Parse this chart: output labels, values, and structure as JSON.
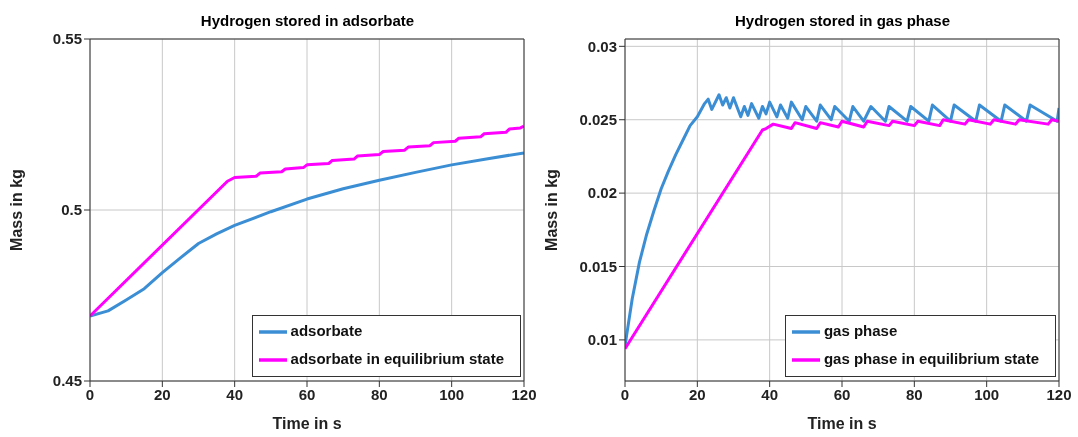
{
  "chart_data": [
    {
      "type": "line",
      "title": "Hydrogen stored in adsorbate",
      "xlabel": "Time in s",
      "ylabel": "Mass in kg",
      "xlim": [
        0,
        120
      ],
      "xticks": [
        0,
        20,
        40,
        60,
        80,
        100,
        120
      ],
      "ylim": [
        0.45,
        0.55
      ],
      "yticks": [
        0.45,
        0.5,
        0.55
      ],
      "grid": true,
      "legend": "bottom right",
      "marker": "none",
      "line_style": "solid",
      "series": [
        {
          "name": "adsorbate",
          "color": "#3b8ed4",
          "x": [
            0,
            5,
            10,
            15,
            20,
            25,
            30,
            35,
            40,
            50,
            60,
            70,
            80,
            90,
            100,
            110,
            120
          ],
          "values": [
            0.469,
            0.4705,
            0.4737,
            0.477,
            0.4817,
            0.486,
            0.4902,
            0.493,
            0.4955,
            0.4995,
            0.5032,
            0.5062,
            0.5087,
            0.511,
            0.5132,
            0.515,
            0.5167
          ]
        },
        {
          "name": "adsorbate in equilibrium state",
          "color": "#ff00ff",
          "x": [
            0,
            38,
            40,
            46,
            47,
            53,
            54,
            59,
            60,
            66,
            67,
            73,
            74,
            80,
            81,
            87,
            88,
            94,
            95,
            101,
            102,
            108,
            109,
            115,
            116,
            119,
            120
          ],
          "values": [
            0.469,
            0.5084,
            0.5095,
            0.5099,
            0.5108,
            0.5112,
            0.512,
            0.5124,
            0.5132,
            0.5136,
            0.5145,
            0.5149,
            0.5158,
            0.5162,
            0.5171,
            0.5175,
            0.5184,
            0.5188,
            0.5197,
            0.5201,
            0.521,
            0.5214,
            0.5223,
            0.5227,
            0.5237,
            0.524,
            0.5245
          ]
        }
      ]
    },
    {
      "type": "line",
      "title": "Hydrogen stored in gas phase",
      "xlabel": "Time in s",
      "ylabel": "Mass in kg",
      "xlim": [
        0,
        120
      ],
      "xticks": [
        0,
        20,
        40,
        60,
        80,
        100,
        120
      ],
      "ylim": [
        0.0072,
        0.0305
      ],
      "yticks": [
        0.01,
        0.015,
        0.02,
        0.025,
        0.03
      ],
      "grid": true,
      "legend": "bottom right",
      "marker": "none",
      "line_style": "solid",
      "series": [
        {
          "name": "gas phase",
          "color": "#3b8ed4",
          "x": [
            0,
            2,
            4,
            6,
            8,
            10,
            12,
            14,
            16,
            18,
            20,
            22,
            23,
            24,
            26,
            27,
            28,
            29,
            30,
            32,
            33,
            34,
            35,
            37,
            38,
            39,
            40,
            42,
            43,
            45,
            46,
            49,
            50,
            53,
            54,
            57,
            58,
            62,
            63,
            66,
            68,
            72,
            73,
            78,
            79,
            84,
            85,
            90,
            91,
            97,
            98,
            104,
            105,
            111,
            112,
            119.5,
            120
          ],
          "values": [
            0.0096,
            0.0128,
            0.0153,
            0.0172,
            0.0188,
            0.0203,
            0.0215,
            0.0226,
            0.0236,
            0.0246,
            0.0252,
            0.0261,
            0.0264,
            0.0257,
            0.0267,
            0.026,
            0.0265,
            0.0258,
            0.0265,
            0.0252,
            0.0259,
            0.0253,
            0.0261,
            0.0251,
            0.0259,
            0.0254,
            0.0262,
            0.0252,
            0.026,
            0.0251,
            0.0262,
            0.025,
            0.0259,
            0.0249,
            0.026,
            0.025,
            0.0259,
            0.0249,
            0.0259,
            0.0249,
            0.0259,
            0.0249,
            0.0259,
            0.0249,
            0.0259,
            0.0249,
            0.026,
            0.0249,
            0.026,
            0.0249,
            0.026,
            0.0249,
            0.026,
            0.0249,
            0.026,
            0.0249,
            0.0258
          ]
        },
        {
          "name": "gas phase in equilibrium state",
          "color": "#ff00ff",
          "x": [
            0,
            38,
            39,
            41,
            46,
            47,
            53,
            54,
            59,
            60,
            66,
            67,
            73,
            74,
            80,
            81,
            87,
            88,
            94,
            95,
            101,
            102,
            108,
            109,
            117,
            118,
            120
          ],
          "values": [
            0.0094,
            0.0243,
            0.0244,
            0.0247,
            0.0244,
            0.0248,
            0.0244,
            0.0248,
            0.0245,
            0.0249,
            0.0245,
            0.0249,
            0.0246,
            0.0249,
            0.0246,
            0.0249,
            0.0246,
            0.025,
            0.0247,
            0.025,
            0.0247,
            0.025,
            0.0247,
            0.025,
            0.0247,
            0.025,
            0.0249
          ]
        }
      ]
    }
  ]
}
